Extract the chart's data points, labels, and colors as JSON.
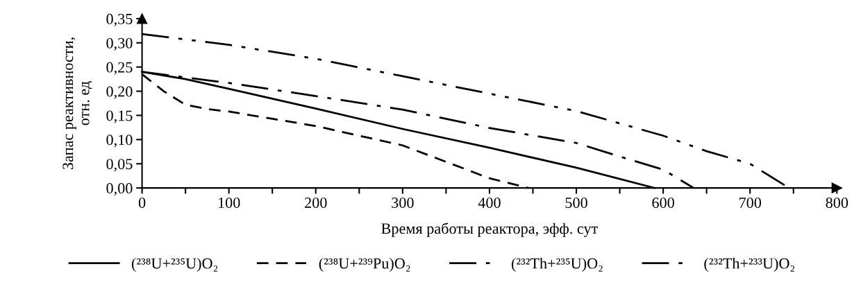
{
  "chart_data": {
    "type": "line",
    "xlabel": "Время работы реактора, эфф. сут",
    "ylabel": "Запас реактивности,\nотн. ед",
    "xlim": [
      0,
      800
    ],
    "ylim": [
      0,
      0.35
    ],
    "xticks": [
      0,
      {
        "value": 50,
        "label": null
      },
      100,
      {
        "value": 150,
        "label": null
      },
      200,
      {
        "value": 250,
        "label": null
      },
      300,
      {
        "value": 350,
        "label": null
      },
      400,
      {
        "value": 450,
        "label": null
      },
      500,
      {
        "value": 550,
        "label": null
      },
      600,
      {
        "value": 650,
        "label": null
      },
      700,
      {
        "value": 750,
        "label": null
      },
      800
    ],
    "yticks": [
      {
        "value": 0,
        "label": "0,00"
      },
      {
        "value": 0.05,
        "label": "0,05"
      },
      {
        "value": 0.1,
        "label": "0,10"
      },
      {
        "value": 0.15,
        "label": "0,15"
      },
      {
        "value": 0.2,
        "label": "0,20"
      },
      {
        "value": 0.25,
        "label": "0,25"
      },
      {
        "value": 0.3,
        "label": "0,30"
      },
      {
        "value": 0.35,
        "label": "0,35"
      }
    ],
    "grid": false,
    "legend": "bottom",
    "marker": "none",
    "series": [
      {
        "name": "(²³⁸U+²³⁵U)O₂",
        "color": "#000000",
        "line_style": "solid",
        "x": [
          0,
          50,
          100,
          200,
          300,
          400,
          500,
          590
        ],
        "values": [
          0.24,
          0.225,
          0.205,
          0.164,
          0.122,
          0.083,
          0.042,
          0
        ]
      },
      {
        "name": "(²³⁸U+²³⁹Pu)O₂",
        "color": "#000000",
        "line_style": "dashed",
        "x": [
          0,
          25,
          50,
          75,
          100,
          200,
          300,
          400,
          445
        ],
        "values": [
          0.235,
          0.2,
          0.172,
          0.163,
          0.158,
          0.128,
          0.088,
          0.02,
          0
        ]
      },
      {
        "name": "(²³²Th+²³⁵U)O₂",
        "color": "#000000",
        "line_style": "dashdot",
        "x": [
          0,
          100,
          200,
          300,
          400,
          500,
          550,
          600,
          635
        ],
        "values": [
          0.24,
          0.217,
          0.19,
          0.162,
          0.124,
          0.093,
          0.065,
          0.038,
          0
        ]
      },
      {
        "name": "(²³²Th+²³³U)O₂",
        "color": "#000000",
        "line_style": "dashdotdot",
        "x": [
          0,
          100,
          200,
          300,
          400,
          500,
          600,
          650,
          700,
          745
        ],
        "values": [
          0.318,
          0.296,
          0.267,
          0.231,
          0.195,
          0.159,
          0.108,
          0.076,
          0.05,
          0
        ]
      }
    ]
  }
}
